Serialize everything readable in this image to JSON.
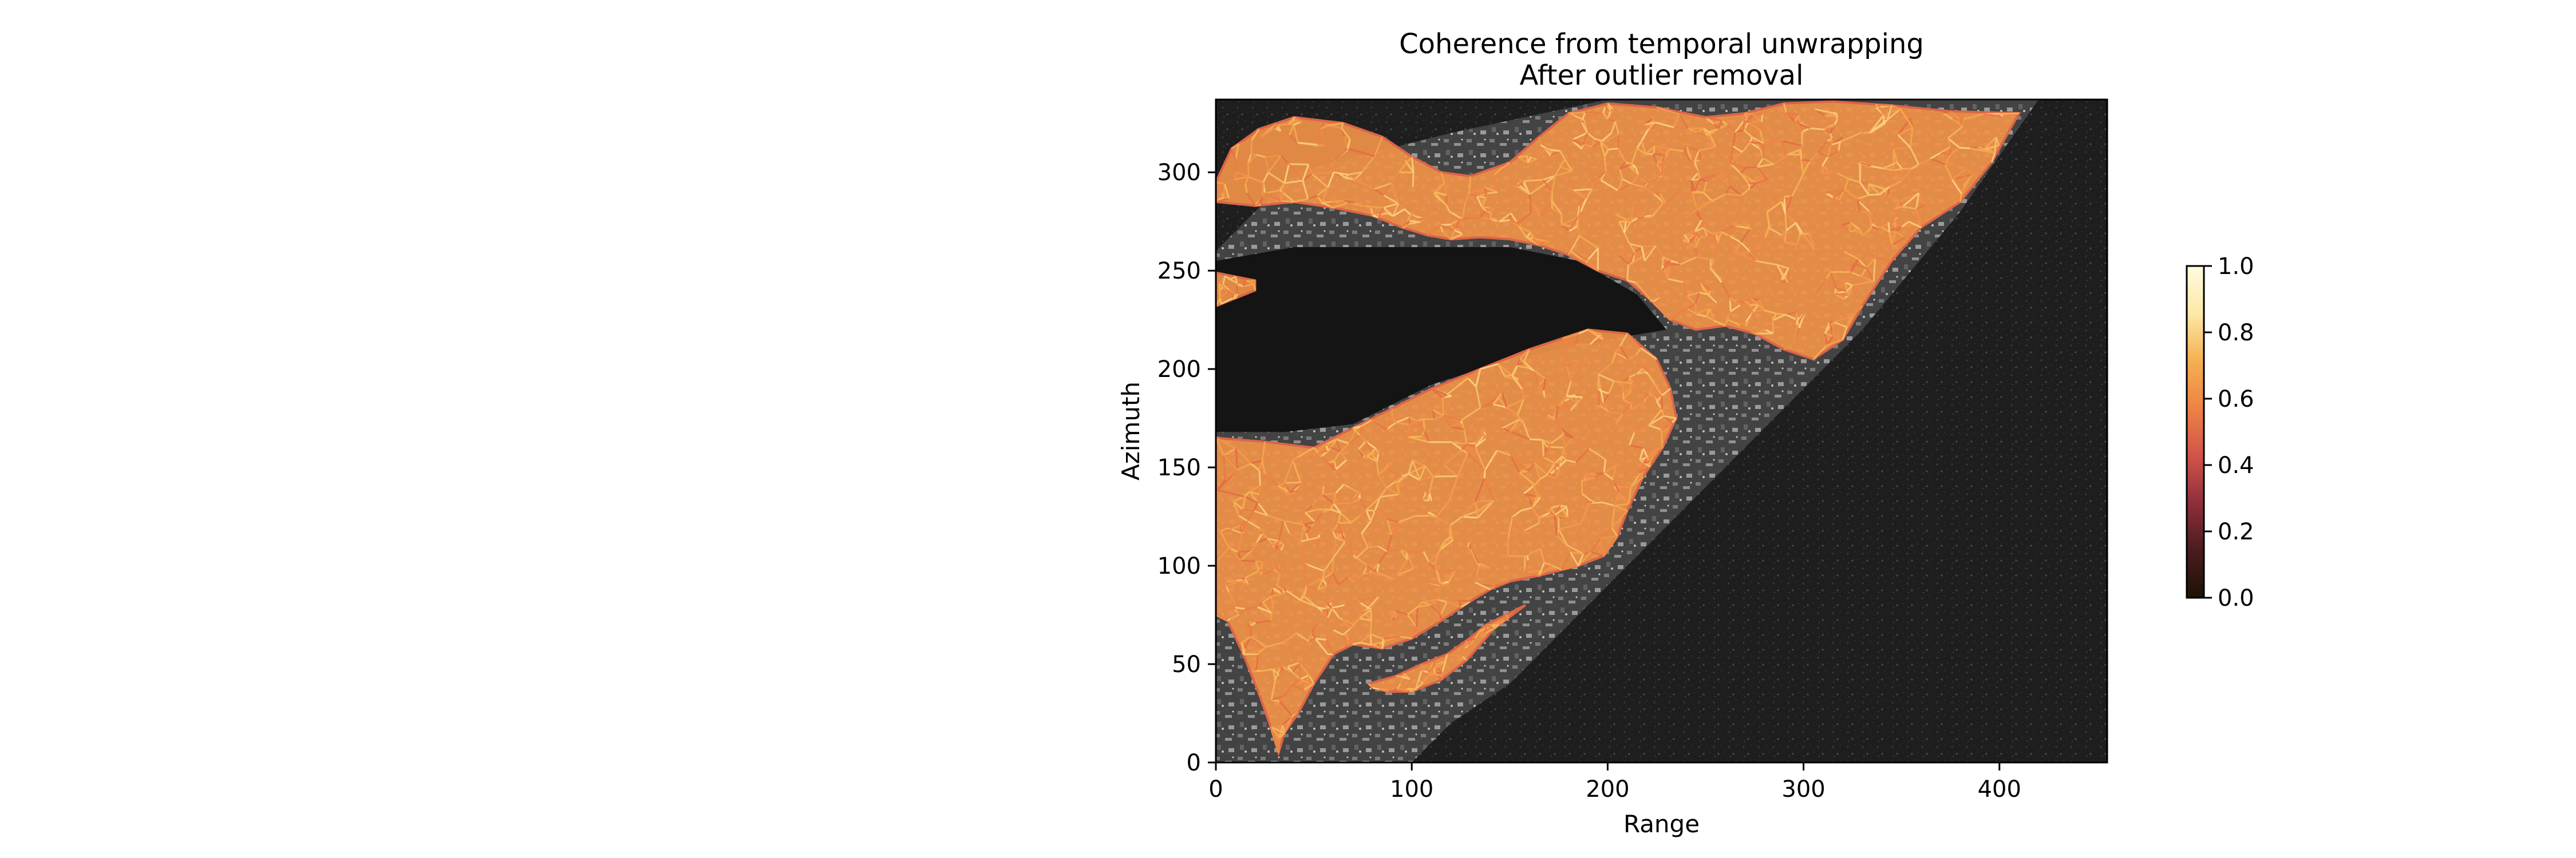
{
  "chart_data": {
    "type": "heatmap",
    "title": "Coherence from temporal unwrapping",
    "subtitle": "After outlier removal",
    "xlabel": "Range",
    "ylabel": "Azimuth",
    "xlim": [
      0,
      455
    ],
    "ylim": [
      0,
      337
    ],
    "xticks": [
      0,
      100,
      200,
      300,
      400
    ],
    "yticks": [
      0,
      50,
      100,
      150,
      200,
      250,
      300
    ],
    "colorbar": {
      "vmin": 0.0,
      "vmax": 1.0,
      "ticks": [
        0.0,
        0.2,
        0.4,
        0.6,
        0.8,
        1.0
      ],
      "tick_labels": [
        "0.0",
        "0.2",
        "0.4",
        "0.6",
        "0.8",
        "1.0"
      ],
      "colormap_stops": [
        "#1c1205",
        "#4a1c1f",
        "#8e2f3a",
        "#d2544a",
        "#ee8244",
        "#f5b052",
        "#fde9a6",
        "#fffbe0"
      ]
    },
    "grid": false,
    "background": "grayscale SAR amplitude image",
    "network_regions": [
      {
        "name": "upper",
        "outline": [
          [
            0,
            295
          ],
          [
            8,
            312
          ],
          [
            22,
            322
          ],
          [
            40,
            328
          ],
          [
            65,
            325
          ],
          [
            85,
            318
          ],
          [
            100,
            308
          ],
          [
            115,
            300
          ],
          [
            130,
            298
          ],
          [
            150,
            305
          ],
          [
            165,
            318
          ],
          [
            180,
            330
          ],
          [
            200,
            335
          ],
          [
            225,
            333
          ],
          [
            250,
            328
          ],
          [
            270,
            330
          ],
          [
            290,
            335
          ],
          [
            315,
            336
          ],
          [
            345,
            334
          ],
          [
            375,
            331
          ],
          [
            410,
            330
          ],
          [
            396,
            305
          ],
          [
            380,
            285
          ],
          [
            360,
            272
          ],
          [
            345,
            255
          ],
          [
            330,
            232
          ],
          [
            320,
            215
          ],
          [
            305,
            205
          ],
          [
            290,
            210
          ],
          [
            275,
            218
          ],
          [
            260,
            222
          ],
          [
            245,
            220
          ],
          [
            232,
            225
          ],
          [
            222,
            235
          ],
          [
            210,
            245
          ],
          [
            195,
            250
          ],
          [
            180,
            258
          ],
          [
            165,
            263
          ],
          [
            150,
            266
          ],
          [
            135,
            267
          ],
          [
            120,
            266
          ],
          [
            108,
            268
          ],
          [
            95,
            272
          ],
          [
            80,
            278
          ],
          [
            60,
            282
          ],
          [
            40,
            285
          ],
          [
            20,
            283
          ],
          [
            0,
            285
          ]
        ]
      },
      {
        "name": "lower",
        "outline": [
          [
            0,
            165
          ],
          [
            25,
            163
          ],
          [
            50,
            160
          ],
          [
            70,
            170
          ],
          [
            90,
            180
          ],
          [
            110,
            190
          ],
          [
            135,
            200
          ],
          [
            160,
            210
          ],
          [
            190,
            220
          ],
          [
            210,
            218
          ],
          [
            225,
            205
          ],
          [
            232,
            190
          ],
          [
            235,
            175
          ],
          [
            228,
            160
          ],
          [
            218,
            145
          ],
          [
            210,
            128
          ],
          [
            205,
            115
          ],
          [
            198,
            105
          ],
          [
            185,
            100
          ],
          [
            165,
            95
          ],
          [
            150,
            92
          ],
          [
            140,
            88
          ],
          [
            130,
            82
          ],
          [
            115,
            72
          ],
          [
            100,
            63
          ],
          [
            85,
            58
          ],
          [
            70,
            60
          ],
          [
            60,
            55
          ],
          [
            50,
            40
          ],
          [
            42,
            25
          ],
          [
            35,
            15
          ],
          [
            32,
            5
          ],
          [
            28,
            18
          ],
          [
            22,
            35
          ],
          [
            14,
            55
          ],
          [
            6,
            72
          ],
          [
            0,
            75
          ]
        ]
      },
      {
        "name": "left-patch",
        "outline": [
          [
            0,
            232
          ],
          [
            10,
            236
          ],
          [
            20,
            240
          ],
          [
            20,
            245
          ],
          [
            10,
            247
          ],
          [
            0,
            249
          ]
        ]
      },
      {
        "name": "bottom-patch",
        "outline": [
          [
            78,
            40
          ],
          [
            92,
            44
          ],
          [
            105,
            50
          ],
          [
            118,
            55
          ],
          [
            128,
            62
          ],
          [
            138,
            70
          ],
          [
            148,
            75
          ],
          [
            158,
            80
          ],
          [
            142,
            68
          ],
          [
            128,
            52
          ],
          [
            115,
            42
          ],
          [
            100,
            36
          ],
          [
            88,
            36
          ],
          [
            80,
            38
          ]
        ]
      }
    ]
  }
}
